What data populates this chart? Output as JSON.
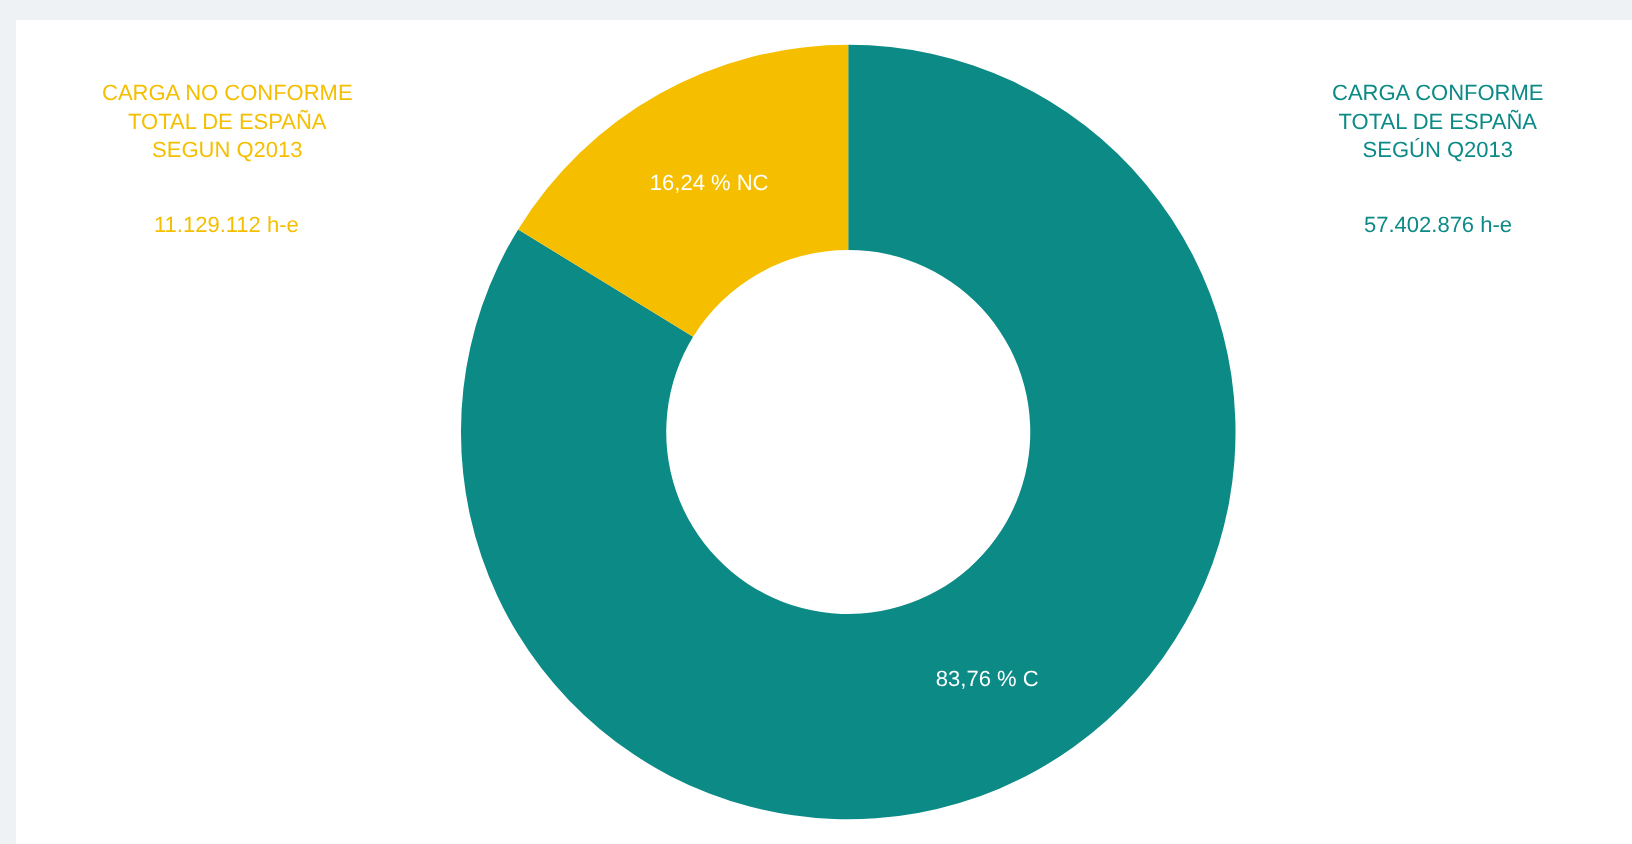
{
  "chart_data": {
    "type": "donut",
    "categories": [
      null,
      null
    ],
    "values": [
      83.76,
      16.24
    ],
    "colors": [
      "#0b8a86",
      "#f5bf00"
    ],
    "value_labels": [
      "83,76 % C",
      "16,24 % NC"
    ],
    "annotations": [
      "CARGA CONFORME\nTOTAL DE ESPAÑA\nSEGÚN Q2013",
      "57.402.876 h-e",
      "CARGA NO CONFORME\nTOTAL DE ESPAÑA\nSEGUN Q2013",
      "11.129.112 h-e"
    ],
    "legend": false
  }
}
